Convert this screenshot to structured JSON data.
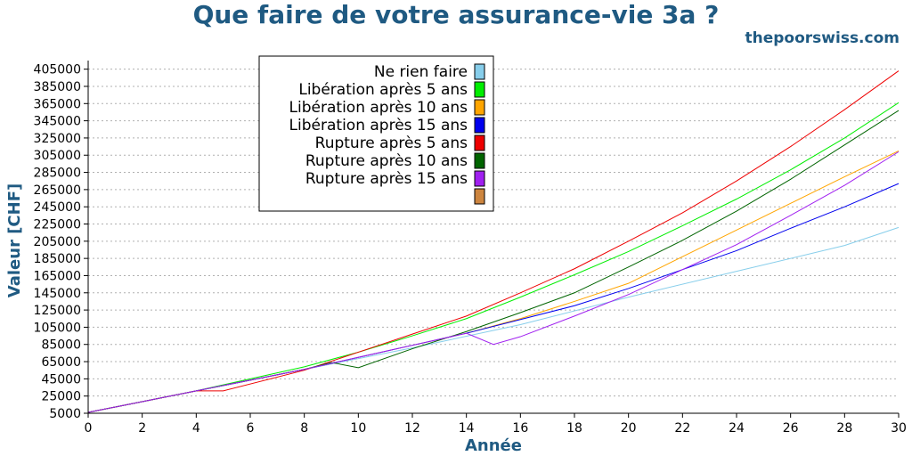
{
  "title": "Que faire de votre assurance-vie 3a ?",
  "brand": "thepoorswiss.com",
  "chart_data": {
    "type": "line",
    "xlabel": "Année",
    "ylabel": "Valeur [CHF]",
    "xlim": [
      0,
      30
    ],
    "ylim": [
      5000,
      415000
    ],
    "xticks": [
      0,
      2,
      4,
      6,
      8,
      10,
      12,
      14,
      16,
      18,
      20,
      22,
      24,
      26,
      28,
      30
    ],
    "yticks": [
      5000,
      25000,
      45000,
      65000,
      85000,
      105000,
      125000,
      145000,
      165000,
      185000,
      205000,
      225000,
      245000,
      265000,
      285000,
      305000,
      325000,
      345000,
      365000,
      385000,
      405000
    ],
    "grid": "horizontal dotted",
    "legend_position": "top-left",
    "series": [
      {
        "name": "Ne rien faire",
        "color": "#87ceeb",
        "x": [
          0,
          4,
          8,
          12,
          16,
          20,
          24,
          28,
          30
        ],
        "y": [
          6000,
          31000,
          56000,
          81000,
          108000,
          140000,
          170000,
          200000,
          221000
        ]
      },
      {
        "name": "Libération après 5 ans",
        "color": "#00ee00",
        "x": [
          0,
          4,
          6,
          8,
          10,
          12,
          14,
          16,
          18,
          20,
          22,
          24,
          26,
          28,
          30
        ],
        "y": [
          6000,
          31000,
          45000,
          59000,
          76000,
          95000,
          115000,
          140000,
          166000,
          193000,
          223000,
          254000,
          288000,
          325000,
          366000
        ]
      },
      {
        "name": "Libération après 10 ans",
        "color": "#ffa500",
        "x": [
          0,
          4,
          8,
          10,
          12,
          14,
          16,
          18,
          20,
          22,
          24,
          26,
          28,
          30
        ],
        "y": [
          6000,
          31000,
          56000,
          70000,
          84000,
          98000,
          115000,
          135000,
          156000,
          187000,
          218000,
          249000,
          280000,
          310000
        ]
      },
      {
        "name": "Libération après 15 ans",
        "color": "#0000ee",
        "x": [
          0,
          4,
          8,
          10,
          12,
          14,
          16,
          18,
          20,
          22,
          24,
          26,
          28,
          30
        ],
        "y": [
          6000,
          31000,
          56000,
          70000,
          84000,
          98000,
          114000,
          130000,
          150000,
          172000,
          194000,
          220000,
          245000,
          272000
        ]
      },
      {
        "name": "Rupture après 5 ans",
        "color": "#ee0000",
        "x": [
          0,
          4,
          5,
          8,
          10,
          12,
          14,
          16,
          18,
          20,
          22,
          24,
          26,
          28,
          30
        ],
        "y": [
          6000,
          31000,
          31000,
          55000,
          76000,
          97000,
          118000,
          145000,
          173000,
          205000,
          238000,
          275000,
          315000,
          358000,
          403000
        ]
      },
      {
        "name": "Rupture après 10 ans",
        "color": "#006400",
        "x": [
          0,
          4,
          8,
          9,
          10,
          12,
          14,
          16,
          18,
          20,
          22,
          24,
          26,
          28,
          30
        ],
        "y": [
          6000,
          31000,
          56000,
          64000,
          58000,
          80000,
          100000,
          122000,
          145000,
          175000,
          206000,
          240000,
          277000,
          317000,
          357000
        ]
      },
      {
        "name": "Rupture après 15 ans",
        "color": "#a020f0",
        "x": [
          0,
          4,
          8,
          10,
          12,
          14,
          15,
          16,
          18,
          20,
          22,
          24,
          26,
          28,
          30
        ],
        "y": [
          6000,
          31000,
          56000,
          70000,
          84000,
          98000,
          85000,
          94000,
          118000,
          143000,
          172000,
          201000,
          235000,
          270000,
          309000
        ]
      },
      {
        "name": "",
        "color": "#cd853f",
        "x": [],
        "y": []
      }
    ]
  }
}
